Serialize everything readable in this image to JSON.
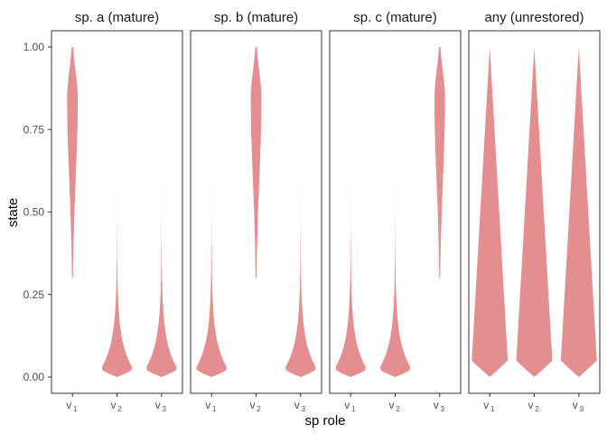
{
  "chart_data": {
    "type": "violin",
    "xlabel": "sp role",
    "ylabel": "state",
    "ylim": [
      0,
      1
    ],
    "y_ticks": [
      "0.00",
      "0.25",
      "0.50",
      "0.75",
      "1.00"
    ],
    "y_tick_values": [
      0,
      0.25,
      0.5,
      0.75,
      1
    ],
    "x_categories": [
      {
        "base": "v",
        "sub": "1"
      },
      {
        "base": "v",
        "sub": "2"
      },
      {
        "base": "v",
        "sub": "3"
      }
    ],
    "fill_color": "#e58e90",
    "panels": [
      {
        "title": "sp. a (mature)",
        "violins": [
          {
            "category": "v1",
            "ymin": 0.3,
            "ymax": 1.0,
            "shape": "high"
          },
          {
            "category": "v2",
            "ymin": 0.0,
            "ymax": 0.6,
            "shape": "low"
          },
          {
            "category": "v3",
            "ymin": 0.0,
            "ymax": 0.6,
            "shape": "low"
          }
        ]
      },
      {
        "title": "sp. b (mature)",
        "violins": [
          {
            "category": "v1",
            "ymin": 0.0,
            "ymax": 0.6,
            "shape": "low"
          },
          {
            "category": "v2",
            "ymin": 0.3,
            "ymax": 1.0,
            "shape": "high"
          },
          {
            "category": "v3",
            "ymin": 0.0,
            "ymax": 0.6,
            "shape": "low"
          }
        ]
      },
      {
        "title": "sp. c (mature)",
        "violins": [
          {
            "category": "v1",
            "ymin": 0.0,
            "ymax": 0.6,
            "shape": "low"
          },
          {
            "category": "v2",
            "ymin": 0.0,
            "ymax": 0.6,
            "shape": "low"
          },
          {
            "category": "v3",
            "ymin": 0.3,
            "ymax": 1.0,
            "shape": "high"
          }
        ]
      },
      {
        "title": "any (unrestored)",
        "violins": [
          {
            "category": "v1",
            "ymin": 0.0,
            "ymax": 1.0,
            "shape": "uniform"
          },
          {
            "category": "v2",
            "ymin": 0.0,
            "ymax": 1.0,
            "shape": "uniform"
          },
          {
            "category": "v3",
            "ymin": 0.0,
            "ymax": 1.0,
            "shape": "uniform"
          }
        ]
      }
    ]
  }
}
